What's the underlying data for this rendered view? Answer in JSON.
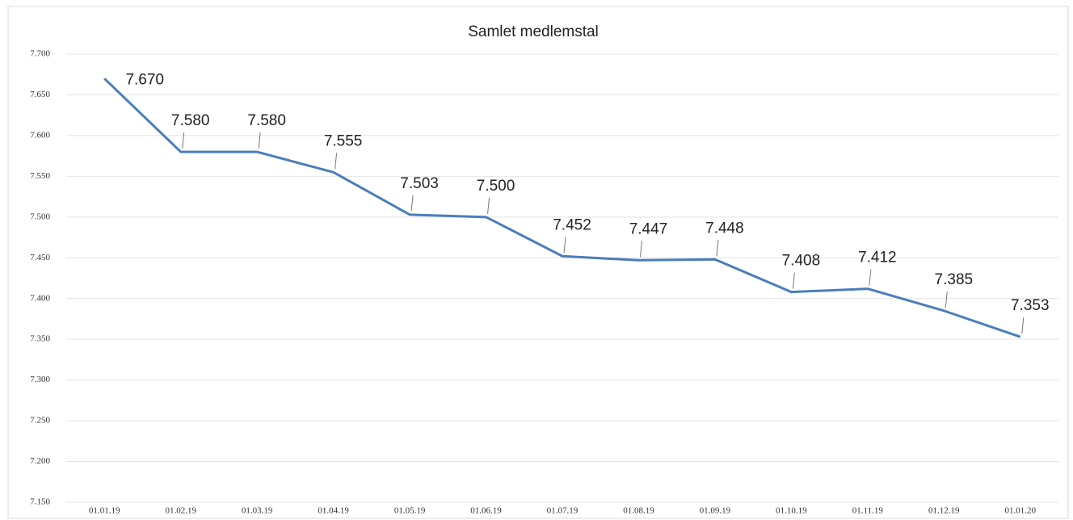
{
  "chart_data": {
    "type": "line",
    "title": "Samlet medlemstal",
    "categories": [
      "01.01.19",
      "01.02.19",
      "01.03.19",
      "01.04.19",
      "01.05.19",
      "01.06.19",
      "01.07.19",
      "01.08.19",
      "01.09.19",
      "01.10.19",
      "01.11.19",
      "01.12.19",
      "01.01.20"
    ],
    "values": [
      7670,
      7580,
      7580,
      7555,
      7503,
      7500,
      7452,
      7447,
      7448,
      7408,
      7412,
      7385,
      7353
    ],
    "value_labels": [
      "7.670",
      "7.580",
      "7.580",
      "7.555",
      "7.503",
      "7.500",
      "7.452",
      "7.447",
      "7.448",
      "7.408",
      "7.412",
      "7.385",
      "7.353"
    ],
    "color": "#4a7ebb",
    "ylim": [
      7150,
      7700
    ],
    "yticks": [
      {
        "value": 7150,
        "label": "7.150"
      },
      {
        "value": 7200,
        "label": "7.200"
      },
      {
        "value": 7250,
        "label": "7.250"
      },
      {
        "value": 7300,
        "label": "7.300"
      },
      {
        "value": 7350,
        "label": "7.350"
      },
      {
        "value": 7400,
        "label": "7.400"
      },
      {
        "value": 7450,
        "label": "7.450"
      },
      {
        "value": 7500,
        "label": "7.500"
      },
      {
        "value": 7550,
        "label": "7.550"
      },
      {
        "value": 7600,
        "label": "7.600"
      },
      {
        "value": 7650,
        "label": "7.650"
      },
      {
        "value": 7700,
        "label": "7.700"
      }
    ],
    "grid": true
  }
}
